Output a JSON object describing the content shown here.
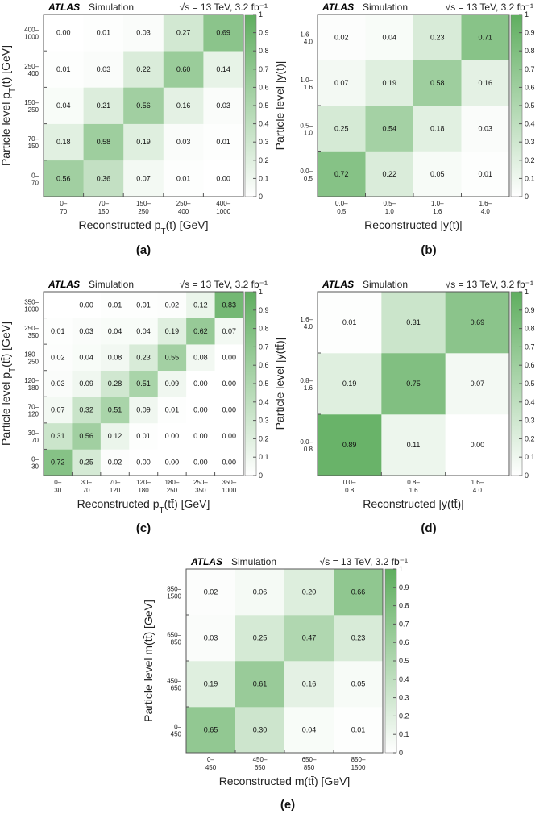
{
  "colors": {
    "cell_max": "#5fae5f",
    "cell_min": "#ffffff",
    "frame": "#666666",
    "text": "#111111"
  },
  "z_ticks": [
    "0",
    "0.1",
    "0.2",
    "0.3",
    "0.4",
    "0.5",
    "0.6",
    "0.7",
    "0.8",
    "0.9",
    "1"
  ],
  "chart_data": [
    {
      "type": "heatmap",
      "panel_label": "(a)",
      "header": {
        "experiment": "ATLAS",
        "status": "Simulation",
        "energy": "√s = 13 TeV, 3.2 fb⁻¹"
      },
      "xlabel": "Reconstructed p_T(t) [GeV]",
      "ylabel": "Particle level p_T(t) [GeV]",
      "x_bins": [
        [
          "0–",
          "70"
        ],
        [
          "70–",
          "150"
        ],
        [
          "150–",
          "250"
        ],
        [
          "250–",
          "400"
        ],
        [
          "400–",
          "1000"
        ]
      ],
      "y_bins": [
        [
          "0–",
          "70"
        ],
        [
          "70–",
          "150"
        ],
        [
          "150–",
          "250"
        ],
        [
          "250–",
          "400"
        ],
        [
          "400–",
          "1000"
        ]
      ],
      "values": [
        [
          0.56,
          0.36,
          0.07,
          0.01,
          0.0
        ],
        [
          0.18,
          0.58,
          0.19,
          0.03,
          0.01
        ],
        [
          0.04,
          0.21,
          0.56,
          0.16,
          0.03
        ],
        [
          0.01,
          0.03,
          0.22,
          0.6,
          0.14
        ],
        [
          0.0,
          0.01,
          0.03,
          0.27,
          0.69
        ]
      ],
      "zlim": [
        0,
        1
      ]
    },
    {
      "type": "heatmap",
      "panel_label": "(b)",
      "header": {
        "experiment": "ATLAS",
        "status": "Simulation",
        "energy": "√s = 13 TeV, 3.2 fb⁻¹"
      },
      "xlabel": "Reconstructed |y(t)|",
      "ylabel": "Particle level |y(t)|",
      "x_bins": [
        [
          "0.0–",
          "0.5"
        ],
        [
          "0.5–",
          "1.0"
        ],
        [
          "1.0–",
          "1.6"
        ],
        [
          "1.6–",
          "4.0"
        ]
      ],
      "y_bins": [
        [
          "0.0–",
          "0.5"
        ],
        [
          "0.5–",
          "1.0"
        ],
        [
          "1.0–",
          "1.6"
        ],
        [
          "1.6–",
          "4.0"
        ]
      ],
      "values": [
        [
          0.72,
          0.22,
          0.05,
          0.01
        ],
        [
          0.25,
          0.54,
          0.18,
          0.03
        ],
        [
          0.07,
          0.19,
          0.58,
          0.16
        ],
        [
          0.02,
          0.04,
          0.23,
          0.71
        ]
      ],
      "zlim": [
        0,
        1
      ]
    },
    {
      "type": "heatmap",
      "panel_label": "(c)",
      "header": {
        "experiment": "ATLAS",
        "status": "Simulation",
        "energy": "√s = 13 TeV, 3.2 fb⁻¹"
      },
      "xlabel": "Reconstructed p_T(tt̄) [GeV]",
      "ylabel": "Particle level p_T(tt̄) [GeV]",
      "x_bins": [
        [
          "0–",
          "30"
        ],
        [
          "30–",
          "70"
        ],
        [
          "70–",
          "120"
        ],
        [
          "120–",
          "180"
        ],
        [
          "180–",
          "250"
        ],
        [
          "250–",
          "350"
        ],
        [
          "350–",
          "1000"
        ]
      ],
      "y_bins": [
        [
          "0–",
          "30"
        ],
        [
          "30–",
          "70"
        ],
        [
          "70–",
          "120"
        ],
        [
          "120–",
          "180"
        ],
        [
          "180–",
          "250"
        ],
        [
          "250–",
          "350"
        ],
        [
          "350–",
          "1000"
        ]
      ],
      "values": [
        [
          0.72,
          0.25,
          0.02,
          0.0,
          0.0,
          0.0,
          0.0
        ],
        [
          0.31,
          0.56,
          0.12,
          0.01,
          0.0,
          0.0,
          0.0
        ],
        [
          0.07,
          0.32,
          0.51,
          0.09,
          0.01,
          0.0,
          0.0
        ],
        [
          0.03,
          0.09,
          0.28,
          0.51,
          0.09,
          0.0,
          0.0
        ],
        [
          0.02,
          0.04,
          0.08,
          0.23,
          0.55,
          0.08,
          0.0
        ],
        [
          0.01,
          0.03,
          0.04,
          0.04,
          0.19,
          0.62,
          0.07
        ],
        [
          null,
          0.0,
          0.01,
          0.01,
          0.02,
          0.12,
          0.83
        ]
      ],
      "zlim": [
        0,
        1
      ]
    },
    {
      "type": "heatmap",
      "panel_label": "(d)",
      "header": {
        "experiment": "ATLAS",
        "status": "Simulation",
        "energy": "√s = 13 TeV, 3.2 fb⁻¹"
      },
      "xlabel": "Reconstructed |y(tt̄)|",
      "ylabel": "Particle level |y(tt̄)|",
      "x_bins": [
        [
          "0.0–",
          "0.8"
        ],
        [
          "0.8–",
          "1.6"
        ],
        [
          "1.6–",
          "4.0"
        ]
      ],
      "y_bins": [
        [
          "0.0–",
          "0.8"
        ],
        [
          "0.8–",
          "1.6"
        ],
        [
          "1.6–",
          "4.0"
        ]
      ],
      "values": [
        [
          0.89,
          0.11,
          0.0
        ],
        [
          0.19,
          0.75,
          0.07
        ],
        [
          0.01,
          0.31,
          0.69
        ]
      ],
      "zlim": [
        0,
        1
      ]
    },
    {
      "type": "heatmap",
      "panel_label": "(e)",
      "header": {
        "experiment": "ATLAS",
        "status": "Simulation",
        "energy": "√s = 13 TeV, 3.2 fb⁻¹"
      },
      "xlabel": "Reconstructed m(tt̄) [GeV]",
      "ylabel": "Particle level m(tt̄) [GeV]",
      "x_bins": [
        [
          "0–",
          "450"
        ],
        [
          "450–",
          "650"
        ],
        [
          "650–",
          "850"
        ],
        [
          "850–",
          "1500"
        ]
      ],
      "y_bins": [
        [
          "0–",
          "450"
        ],
        [
          "450–",
          "650"
        ],
        [
          "650–",
          "850"
        ],
        [
          "850–",
          "1500"
        ]
      ],
      "values": [
        [
          0.65,
          0.3,
          0.04,
          0.01
        ],
        [
          0.19,
          0.61,
          0.16,
          0.05
        ],
        [
          0.03,
          0.25,
          0.47,
          0.23
        ],
        [
          0.02,
          0.06,
          0.2,
          0.66
        ]
      ],
      "zlim": [
        0,
        1
      ]
    }
  ]
}
